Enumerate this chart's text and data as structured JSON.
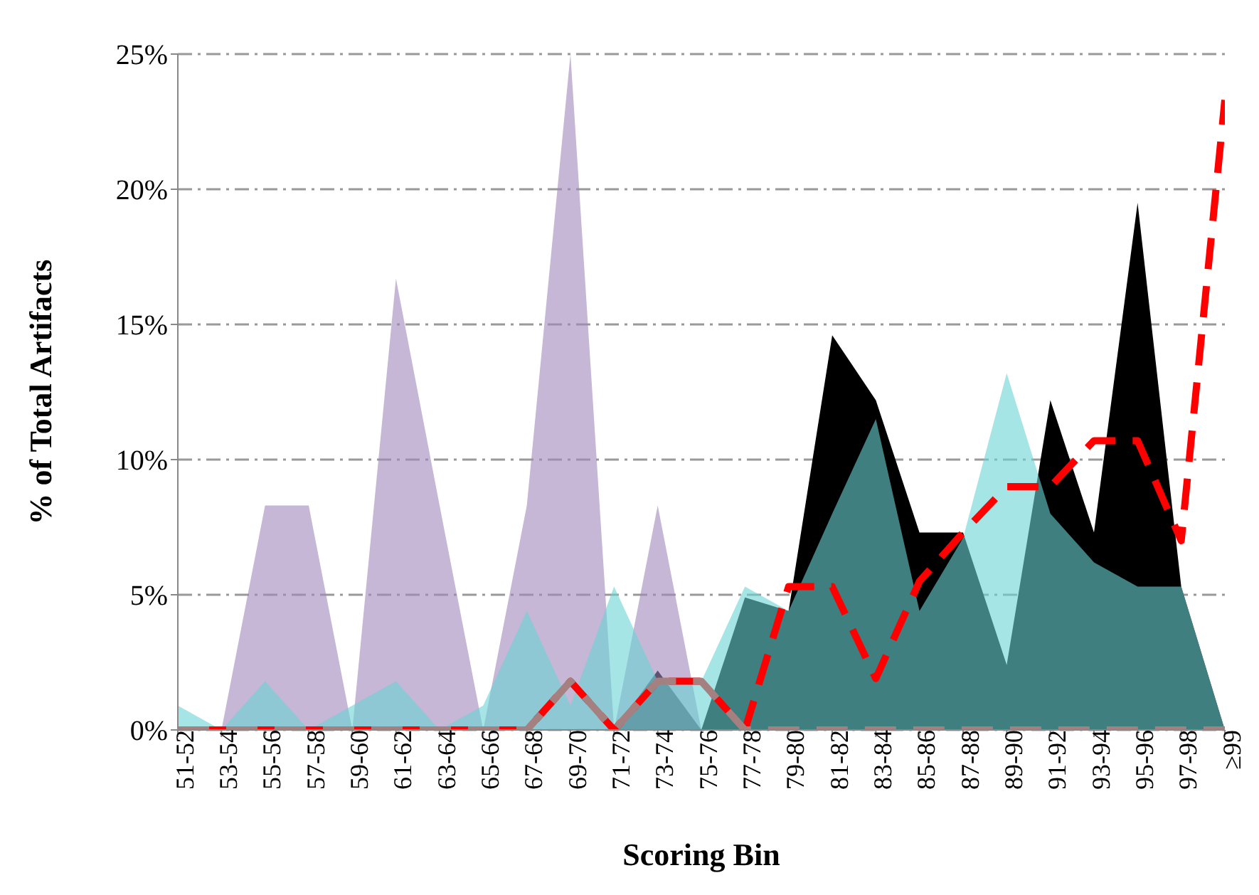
{
  "chart_data": {
    "type": "area",
    "xlabel": "Scoring Bin",
    "ylabel": "% of Total Artifacts",
    "categories": [
      "51-52",
      "53-54",
      "55-56",
      "57-58",
      "59-60",
      "61-62",
      "63-64",
      "65-66",
      "67-68",
      "69-70",
      "71-72",
      "73-74",
      "75-76",
      "77-78",
      "79-80",
      "81-82",
      "83-84",
      "85-86",
      "87-88",
      "89-90",
      "91-92",
      "93-94",
      "95-96",
      "97-98",
      "≥99"
    ],
    "series": [
      {
        "type": "area",
        "color": "#000000",
        "values": [
          0,
          0,
          0,
          0,
          0,
          0,
          0,
          0,
          0,
          0,
          0,
          2.2,
          0,
          4.9,
          4.4,
          14.6,
          12.2,
          7.3,
          7.3,
          2.4,
          12.2,
          7.3,
          19.5,
          5.3,
          0
        ]
      },
      {
        "type": "area",
        "color": "#9e87b9",
        "values": [
          0,
          0,
          8.3,
          8.3,
          0,
          16.7,
          8.3,
          0,
          8.3,
          25,
          0,
          8.3,
          0,
          0,
          0,
          0,
          0,
          0,
          0,
          0,
          0,
          0,
          0,
          0,
          0
        ]
      },
      {
        "type": "area",
        "color": "#69d4d4",
        "values": [
          0.9,
          0,
          1.8,
          0,
          0.9,
          1.8,
          0,
          0.9,
          4.4,
          0.9,
          5.3,
          1.8,
          1.8,
          5.3,
          4.4,
          8.0,
          11.5,
          4.4,
          7.1,
          13.2,
          8.0,
          6.2,
          5.3,
          5.3,
          0
        ]
      },
      {
        "type": "line",
        "color": "#ff0000",
        "line_style": "dashed",
        "values": [
          0,
          0,
          0,
          0,
          0,
          0,
          0,
          0,
          0,
          1.8,
          0,
          1.8,
          1.8,
          0,
          5.3,
          5.3,
          1.9,
          5.5,
          7.3,
          9.0,
          9.0,
          10.7,
          10.7,
          7.0,
          23.3
        ]
      },
      {
        "type": "line",
        "color": "#a58080",
        "line_style": "dashed",
        "values": [
          0,
          0,
          0,
          0,
          0,
          0,
          0,
          0,
          0,
          1.8,
          0,
          1.8,
          1.8,
          0,
          0,
          0,
          0,
          0,
          0,
          0,
          0,
          0,
          0,
          0,
          0
        ]
      }
    ],
    "ylim": [
      0,
      25
    ],
    "yticks": [
      {
        "value": 0,
        "label": "0%"
      },
      {
        "value": 5,
        "label": "5%"
      },
      {
        "value": 10,
        "label": "10%"
      },
      {
        "value": 15,
        "label": "15%"
      },
      {
        "value": 20,
        "label": "20%"
      },
      {
        "value": 25,
        "label": "25%"
      }
    ],
    "grid": "y",
    "legend": false
  }
}
